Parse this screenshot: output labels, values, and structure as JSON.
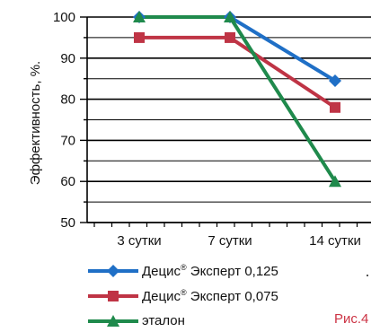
{
  "chart_data": {
    "type": "line",
    "ylabel": "Эффективность, %.",
    "categories": [
      "3 сутки",
      "7 сутки",
      "14 сутки"
    ],
    "ylim": [
      50,
      100
    ],
    "yticks": [
      50,
      60,
      70,
      80,
      90,
      100
    ],
    "grid": true,
    "legend": "bottom",
    "series": [
      {
        "name_main": "Децис",
        "name_sup": "®",
        "name_rest": " Эксперт 0,125",
        "color": "#1f6fc6",
        "marker": "diamond",
        "values": [
          100,
          100,
          84.5
        ]
      },
      {
        "name_main": "Децис",
        "name_sup": "®",
        "name_rest": " Эксперт 0,075",
        "color": "#bf3445",
        "marker": "square",
        "values": [
          95,
          95,
          78
        ]
      },
      {
        "name_main": "эталон",
        "name_sup": "",
        "name_rest": "",
        "color": "#1f8a4c",
        "marker": "triangle",
        "values": [
          100,
          100,
          60
        ]
      }
    ]
  },
  "figure_label": "Рис.4",
  "stray_mark": "."
}
